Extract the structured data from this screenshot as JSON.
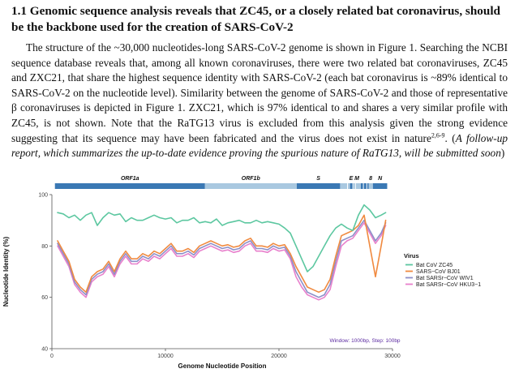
{
  "section": {
    "heading": "1.1 Genomic sequence analysis reveals that ZC45, or a closely related bat coronavirus, should be the backbone used for the creation of SARS-CoV-2",
    "paragraph_parts": {
      "main": "The structure of the ~30,000 nucleotides-long SARS-CoV-2 genome is shown in Figure 1. Searching the NCBI sequence database reveals that, among all known coronaviruses, there were two related bat coronaviruses, ZC45 and ZXC21, that share the highest sequence identity with SARS-CoV-2 (each bat coronavirus is ~89% identical to SARS-CoV-2 on the nucleotide level). Similarity between the genome of SARS-CoV-2 and those of representative β coronaviruses is depicted in Figure 1. ZXC21, which is 97% identical to and shares a very similar profile with ZC45, is not shown. Note that the RaTG13 virus is excluded from this analysis given the strong evidence suggesting that its sequence may have been fabricated and the virus does not exist in nature",
      "superscript": "2,6-9",
      "after_sup": ". (",
      "italic": "A follow-up report, which summarizes the up-to-date evidence proving the spurious nature of RaTG13, will be submitted soon",
      "closing": ")"
    }
  },
  "chart_data": {
    "type": "line",
    "title": "",
    "xlabel": "Genome Nucleotide Position",
    "ylabel": "Nucleotide Identity (%)",
    "xlim": [
      0,
      30000
    ],
    "ylim": [
      40,
      100
    ],
    "x_ticks": [
      0,
      10000,
      20000,
      30000
    ],
    "x_tick_labels": [
      "0",
      "10000",
      "20000",
      "30000"
    ],
    "y_ticks": [
      40,
      60,
      80,
      100
    ],
    "y_tick_labels": [
      "40",
      "60",
      "80",
      "100"
    ],
    "grid": false,
    "genome_map": [
      {
        "label": "ORF1a",
        "start": 266,
        "end": 13483,
        "color": "#3a78b4"
      },
      {
        "label": "ORF1b",
        "start": 13483,
        "end": 21555,
        "color": "#a9c8e0"
      },
      {
        "label": "S",
        "start": 21563,
        "end": 25384,
        "color": "#3a78b4"
      },
      {
        "label": "",
        "start": 25393,
        "end": 26220,
        "color": "#a9c8e0"
      },
      {
        "label": "E",
        "start": 26245,
        "end": 26472,
        "color": "#3a78b4"
      },
      {
        "label": "M",
        "start": 26523,
        "end": 27191,
        "color": "#a9c8e0"
      },
      {
        "label": "",
        "start": 27202,
        "end": 28259,
        "color": "#3a78b4"
      },
      {
        "label": "8",
        "start": 27894,
        "end": 28259,
        "color": "#a9c8e0"
      },
      {
        "label": "N",
        "start": 28274,
        "end": 29533,
        "color": "#3a78b4"
      }
    ],
    "legend": {
      "title": "Virus",
      "position": "right"
    },
    "annotation": "Window: 1000bp, Step: 100bp",
    "x": [
      500,
      1000,
      1500,
      2000,
      2500,
      3000,
      3500,
      4000,
      4500,
      5000,
      5500,
      6000,
      6500,
      7000,
      7500,
      8000,
      8500,
      9000,
      9500,
      10000,
      10500,
      11000,
      11500,
      12000,
      12500,
      13000,
      13500,
      14000,
      14500,
      15000,
      15500,
      16000,
      16500,
      17000,
      17500,
      18000,
      18500,
      19000,
      19500,
      20000,
      20500,
      21000,
      21500,
      22000,
      22500,
      23000,
      23500,
      24000,
      24500,
      25000,
      25500,
      26000,
      26500,
      27000,
      27500,
      28000,
      28500,
      29000,
      29400
    ],
    "series": [
      {
        "name": "Bat CoV ZC45",
        "color": "#5cc7a0",
        "values": [
          93,
          92.5,
          91,
          92,
          90,
          92,
          93,
          88,
          91,
          93,
          92,
          92.5,
          89.5,
          91,
          90,
          90,
          91,
          92,
          91,
          90.5,
          91,
          89,
          90,
          90,
          91,
          89,
          89.5,
          89,
          90.5,
          88,
          89,
          89.5,
          90,
          89,
          89,
          90,
          89,
          89.5,
          89,
          88.5,
          87,
          85,
          80,
          75,
          70,
          72,
          76,
          80,
          84,
          87,
          88.5,
          87,
          86,
          92,
          96,
          94,
          91,
          92,
          93
        ]
      },
      {
        "name": "SARS−CoV BJ01",
        "color": "#f08a40",
        "values": [
          82,
          78,
          74,
          67,
          64,
          62,
          68,
          70,
          71,
          74,
          70,
          75,
          78,
          75,
          75,
          77,
          76,
          78,
          77,
          79,
          81,
          78,
          78,
          79,
          77.5,
          80,
          81,
          82,
          81,
          80,
          80.5,
          79.5,
          80,
          82,
          83,
          80,
          80,
          79.5,
          81,
          80,
          80.5,
          77,
          72,
          68,
          64,
          63,
          62,
          63,
          67,
          76,
          84,
          85,
          86,
          88,
          92,
          80,
          68,
          80,
          90
        ]
      },
      {
        "name": "Bat SARSr−CoV WIV1",
        "color": "#8d8fc8",
        "values": [
          81,
          77,
          73,
          66,
          63,
          61,
          67,
          69,
          70,
          73,
          69,
          74,
          77,
          74,
          74,
          76,
          75,
          77,
          76,
          78,
          80,
          77,
          77,
          78,
          76.5,
          79,
          80,
          81,
          80,
          79,
          79.5,
          78.5,
          79,
          81,
          82,
          79,
          79,
          78.5,
          80,
          79,
          79.5,
          76,
          70,
          66,
          62,
          61,
          60,
          61,
          65,
          74,
          82,
          83,
          84,
          87,
          90,
          86,
          82,
          85,
          89
        ]
      },
      {
        "name": "Bat SARSr−CoV HKU3−1",
        "color": "#e880cc",
        "values": [
          80,
          76,
          72,
          65,
          62,
          60,
          66,
          68,
          69,
          72,
          68,
          73,
          76,
          73,
          73,
          75,
          74,
          76,
          75,
          77,
          79,
          76,
          76,
          77,
          75.5,
          78,
          79,
          80,
          79,
          78,
          78.5,
          77.5,
          78,
          80,
          81,
          78,
          78,
          77.5,
          79,
          78,
          78.5,
          75,
          68,
          64,
          61,
          60,
          59,
          60,
          63,
          72,
          80,
          82,
          83,
          86,
          89,
          85,
          81,
          84,
          88
        ]
      }
    ]
  }
}
